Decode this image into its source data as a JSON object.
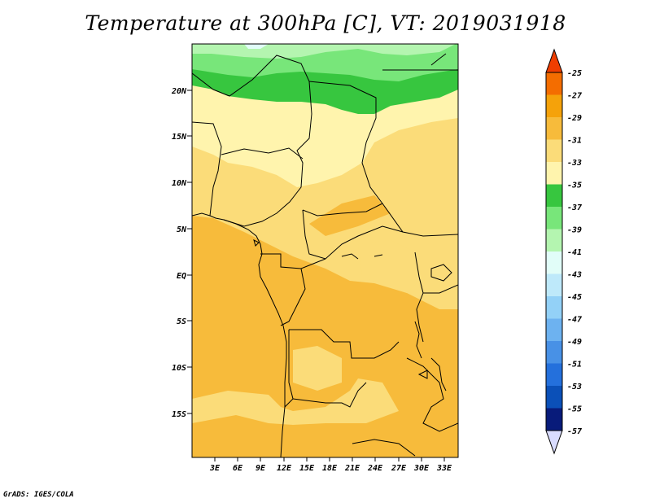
{
  "title": "Temperature at 300hPa [C], VT: 2019031918",
  "footer": "GrADS: IGES/COLA",
  "map": {
    "lat_labels": [
      "20N",
      "15N",
      "10N",
      "5N",
      "EQ",
      "5S",
      "10S",
      "15S"
    ],
    "lon_labels": [
      "3E",
      "6E",
      "9E",
      "12E",
      "15E",
      "18E",
      "21E",
      "24E",
      "27E",
      "30E",
      "33E"
    ]
  },
  "colorbar": {
    "levels": [
      "-25",
      "-27",
      "-29",
      "-31",
      "-33",
      "-35",
      "-37",
      "-39",
      "-41",
      "-43",
      "-45",
      "-47",
      "-49",
      "-51",
      "-53",
      "-55",
      "-57"
    ],
    "colors": [
      "#ef3e00",
      "#f46d00",
      "#f5a20a",
      "#f7bb3b",
      "#fbdc79",
      "#fff4ad",
      "#37c63f",
      "#78e67a",
      "#b4f5b0",
      "#e1fdf8",
      "#bee9fa",
      "#93d1f7",
      "#6db2f0",
      "#4891e6",
      "#2470dc",
      "#0b50b8",
      "#081b7a",
      "#d9dcff"
    ]
  },
  "colors": {
    "land_t29": "#f7bb3b",
    "land_t31": "#fbdc79",
    "land_t33": "#fff4ad",
    "green_37": "#37c63f",
    "green_39": "#78e67a",
    "green_41": "#b4f5b0",
    "cyan_43": "#e1fdf8"
  }
}
